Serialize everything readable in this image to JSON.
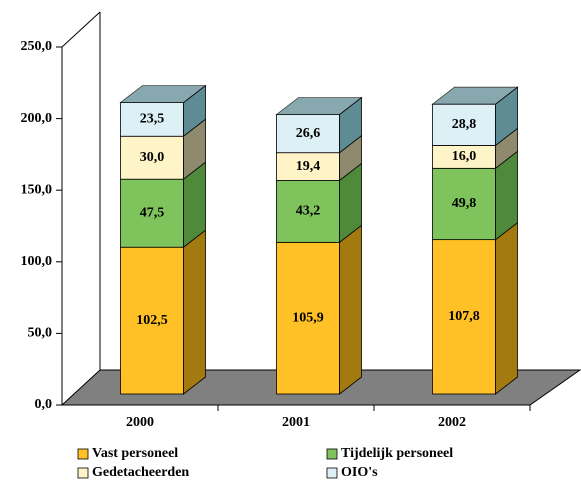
{
  "chart_data": {
    "type": "bar3d_stacked",
    "categories": [
      "2000",
      "2001",
      "2002"
    ],
    "series": [
      {
        "name": "Vast personeel",
        "color": "#ffc125",
        "side": "#a37a10",
        "values": [
          102.5,
          105.9,
          107.8
        ],
        "value_labels": [
          "102,5",
          "105,9",
          "107,8"
        ]
      },
      {
        "name": "Tijdelijk personeel",
        "color": "#7ec35c",
        "side": "#4f8a3a",
        "values": [
          47.5,
          43.2,
          49.8
        ],
        "value_labels": [
          "47,5",
          "43,2",
          "49,8"
        ]
      },
      {
        "name": "Gedetacheerden",
        "color": "#fff3c8",
        "side": "#8f8a6e",
        "values": [
          30.0,
          19.4,
          16.0
        ],
        "value_labels": [
          "30,0",
          "19,4",
          "16,0"
        ]
      },
      {
        "name": "OIO's",
        "color": "#dcf0f6",
        "side": "#5f8c94",
        "values": [
          23.5,
          26.6,
          28.8
        ],
        "value_labels": [
          "23,5",
          "26,6",
          "28,8"
        ]
      }
    ],
    "ylim": [
      0,
      250
    ],
    "yticks": [
      {
        "value": 0,
        "label": "0,0"
      },
      {
        "value": 50,
        "label": "50,0"
      },
      {
        "value": 100,
        "label": "100,0"
      },
      {
        "value": 150,
        "label": "150,0"
      },
      {
        "value": 200,
        "label": "200,0"
      },
      {
        "value": 250,
        "label": "250,0"
      }
    ],
    "legend": "bottom"
  }
}
